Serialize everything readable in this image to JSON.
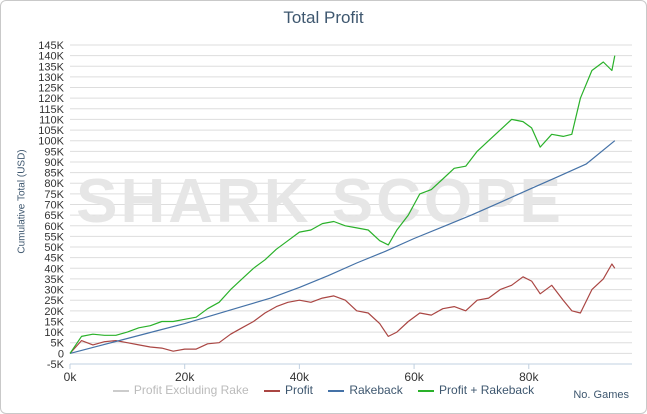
{
  "watermark": "SHARK SCOPE",
  "colors": {
    "off": "#cccccc",
    "profit": "#aa4643",
    "rakeback": "#4572a7",
    "profit_plus_rakeback": "#2ab12a",
    "grid": "#dddddd",
    "axis_text": "#333333"
  },
  "chart_data": {
    "type": "line",
    "title": "Total Profit",
    "xlabel": "No. Games",
    "ylabel": "Cumulative Total (USD)",
    "xlim": [
      0,
      98000
    ],
    "ylim": [
      -5000,
      145000
    ],
    "xticks": [
      "0k",
      "20k",
      "40k",
      "60k",
      "80k"
    ],
    "xtick_values": [
      0,
      20000,
      40000,
      60000,
      80000
    ],
    "yticks": [
      "-5K",
      "0",
      "5K",
      "10K",
      "15K",
      "20K",
      "25K",
      "30K",
      "35K",
      "40K",
      "45K",
      "50K",
      "55K",
      "60K",
      "65K",
      "70K",
      "75K",
      "80K",
      "85K",
      "90K",
      "95K",
      "100K",
      "105K",
      "110K",
      "115K",
      "120K",
      "125K",
      "130K",
      "135K",
      "140K",
      "145K"
    ],
    "ytick_values": [
      -5000,
      0,
      5000,
      10000,
      15000,
      20000,
      25000,
      30000,
      35000,
      40000,
      45000,
      50000,
      55000,
      60000,
      65000,
      70000,
      75000,
      80000,
      85000,
      90000,
      95000,
      100000,
      105000,
      110000,
      115000,
      120000,
      125000,
      130000,
      135000,
      140000,
      145000
    ],
    "grid": true,
    "legend_position": "bottom",
    "series": [
      {
        "name": "Profit Excluding Rake",
        "key": "off",
        "visible": false,
        "x": [],
        "y": []
      },
      {
        "name": "Profit",
        "key": "profit",
        "visible": true,
        "x": [
          0,
          2000,
          4000,
          6000,
          8000,
          10000,
          12000,
          14000,
          16000,
          18000,
          20000,
          22000,
          24000,
          26000,
          28000,
          30000,
          32000,
          34000,
          36000,
          38000,
          40000,
          42000,
          44000,
          46000,
          48000,
          50000,
          52000,
          54000,
          55500,
          57000,
          59000,
          61000,
          63000,
          65000,
          67000,
          69000,
          71000,
          73000,
          75000,
          77000,
          79000,
          80500,
          82000,
          84000,
          86000,
          87500,
          89000,
          91000,
          93000,
          94500,
          95000
        ],
        "y": [
          0,
          6000,
          4000,
          5500,
          6000,
          5000,
          4000,
          3000,
          2500,
          1000,
          2000,
          2000,
          4500,
          5000,
          9000,
          12000,
          15000,
          19000,
          22000,
          24000,
          25000,
          24000,
          26000,
          27000,
          25000,
          20000,
          19000,
          14000,
          8000,
          10000,
          15000,
          19000,
          18000,
          21000,
          22000,
          20000,
          25000,
          26000,
          30000,
          32000,
          36000,
          34000,
          28000,
          32000,
          25000,
          20000,
          19000,
          30000,
          35000,
          42000,
          40000
        ]
      },
      {
        "name": "Rakeback",
        "key": "rakeback",
        "visible": true,
        "x": [
          0,
          5000,
          10000,
          15000,
          20000,
          25000,
          30000,
          35000,
          40000,
          45000,
          50000,
          55000,
          60000,
          65000,
          70000,
          75000,
          80000,
          85000,
          90000,
          95000
        ],
        "y": [
          0,
          3500,
          7000,
          10500,
          14000,
          18000,
          22000,
          26000,
          31000,
          36500,
          42500,
          48000,
          54000,
          59500,
          65000,
          71000,
          77000,
          83000,
          89000,
          100000
        ]
      },
      {
        "name": "Profit + Rakeback",
        "key": "profit_plus_rakeback",
        "visible": true,
        "x": [
          0,
          2000,
          4000,
          6000,
          8000,
          10000,
          12000,
          14000,
          16000,
          18000,
          20000,
          22000,
          24000,
          26000,
          28000,
          30000,
          32000,
          34000,
          36000,
          38000,
          40000,
          42000,
          44000,
          46000,
          48000,
          50000,
          52000,
          54000,
          55500,
          57000,
          59000,
          61000,
          63000,
          65000,
          67000,
          69000,
          71000,
          73000,
          75000,
          77000,
          79000,
          80500,
          82000,
          84000,
          86000,
          87500,
          89000,
          91000,
          93000,
          94500,
          95000
        ],
        "y": [
          0,
          8000,
          9000,
          8500,
          8500,
          10000,
          12000,
          13000,
          15000,
          15000,
          16000,
          17000,
          21000,
          24000,
          30000,
          35000,
          40000,
          44000,
          49000,
          53000,
          57000,
          58000,
          61000,
          62000,
          60000,
          59000,
          58000,
          53000,
          51000,
          58000,
          65000,
          75000,
          77000,
          82000,
          87000,
          88000,
          95000,
          100000,
          105000,
          110000,
          109000,
          106000,
          97000,
          103000,
          102000,
          103000,
          120000,
          133000,
          137000,
          133000,
          140000
        ]
      }
    ]
  }
}
